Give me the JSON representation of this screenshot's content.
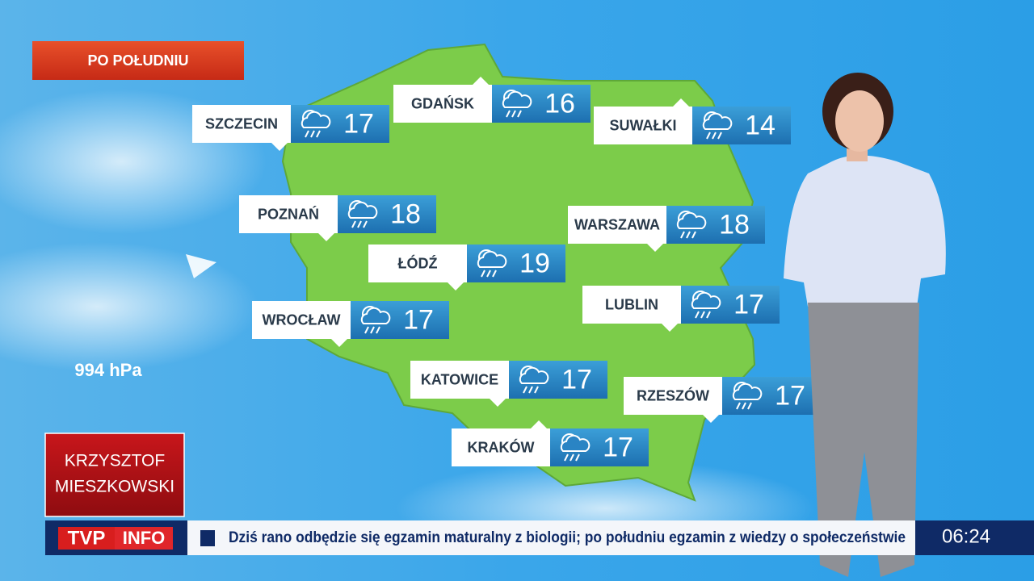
{
  "header": {
    "label": "PO POŁUDNIU"
  },
  "pressure": "994 hPa",
  "cities": [
    {
      "name": "SZCZECIN",
      "temp": 17
    },
    {
      "name": "GDAŃSK",
      "temp": 16
    },
    {
      "name": "SUWAŁKI",
      "temp": 14
    },
    {
      "name": "POZNAŃ",
      "temp": 18
    },
    {
      "name": "WARSZAWA",
      "temp": 18
    },
    {
      "name": "ŁÓDŹ",
      "temp": 19
    },
    {
      "name": "LUBLIN",
      "temp": 17
    },
    {
      "name": "WROCŁAW",
      "temp": 17
    },
    {
      "name": "KATOWICE",
      "temp": 17
    },
    {
      "name": "RZESZÓW",
      "temp": 17
    },
    {
      "name": "KRAKÓW",
      "temp": 17
    }
  ],
  "presenter": {
    "first_name": "KRZYSZTOF",
    "last_name": "MIESZKOWSKI"
  },
  "ticker": {
    "logo_tvp": "TVP",
    "logo_info": "INFO",
    "headline": "Dziś rano odbędzie się egzamin maturalny z biologii; po południu egzamin z wiedzy o społeczeństwie",
    "time": "06:24"
  }
}
